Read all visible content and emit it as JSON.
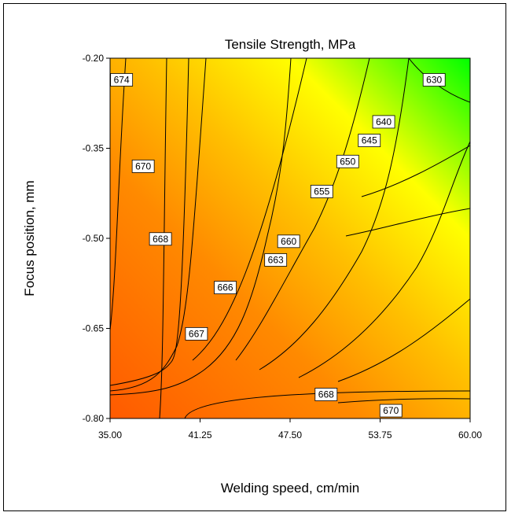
{
  "chart_data": {
    "type": "contour",
    "title": "Tensile Strength, MPa",
    "xlabel": "Welding speed, cm/min",
    "ylabel": "Focus position, mm",
    "xlim": [
      35.0,
      60.0
    ],
    "ylim": [
      -0.8,
      -0.2
    ],
    "x_ticks": [
      "35.00",
      "41.25",
      "47.50",
      "53.75",
      "60.00"
    ],
    "y_ticks": [
      "-0.80",
      "-0.65",
      "-0.50",
      "-0.35",
      "-0.20"
    ],
    "x_tick_values": [
      35.0,
      41.25,
      47.5,
      53.75,
      60.0
    ],
    "y_tick_values": [
      -0.8,
      -0.65,
      -0.5,
      -0.35,
      -0.2
    ],
    "color_scale": [
      "#ff5a00",
      "#ff9a00",
      "#ffff00",
      "#00ff00"
    ],
    "contour_levels": [
      630,
      640,
      645,
      650,
      655,
      660,
      663,
      666,
      667,
      668,
      670,
      674
    ],
    "contour_labels": [
      {
        "text": "674",
        "x": 35.8,
        "y": -0.236
      },
      {
        "text": "670",
        "x": 37.3,
        "y": -0.38
      },
      {
        "text": "668",
        "x": 38.5,
        "y": -0.501
      },
      {
        "text": "667",
        "x": 41.0,
        "y": -0.659
      },
      {
        "text": "666",
        "x": 43.0,
        "y": -0.582
      },
      {
        "text": "663",
        "x": 46.5,
        "y": -0.536
      },
      {
        "text": "660",
        "x": 47.4,
        "y": -0.505
      },
      {
        "text": "655",
        "x": 49.7,
        "y": -0.422
      },
      {
        "text": "650",
        "x": 51.5,
        "y": -0.372
      },
      {
        "text": "645",
        "x": 53.0,
        "y": -0.337
      },
      {
        "text": "640",
        "x": 54.0,
        "y": -0.306
      },
      {
        "text": "630",
        "x": 57.5,
        "y": -0.236
      },
      {
        "text": "668",
        "x": 50.0,
        "y": -0.76
      },
      {
        "text": "670",
        "x": 54.5,
        "y": -0.787
      }
    ]
  }
}
